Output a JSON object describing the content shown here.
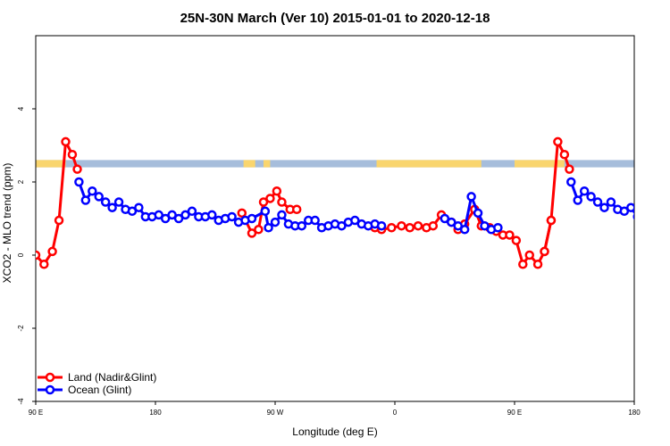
{
  "chart_data": {
    "type": "line",
    "title": "25N-30N March (Ver 10)   2015-01-01 to 2020-12-18",
    "xlabel": "Longitude (deg E)",
    "ylabel": "XCO2 - MLO trend (ppm)",
    "xlim": [
      0,
      360
    ],
    "ylim": [
      -4,
      6
    ],
    "x_ticks": [
      {
        "value": 0,
        "label": "90 E"
      },
      {
        "value": 72,
        "label": "180"
      },
      {
        "value": 144,
        "label": "90 W"
      },
      {
        "value": 216,
        "label": "0"
      },
      {
        "value": 288,
        "label": "90 E"
      },
      {
        "value": 360,
        "label": "180"
      }
    ],
    "y_ticks": [
      {
        "value": -4,
        "label": "-4"
      },
      {
        "value": -2,
        "label": "-2"
      },
      {
        "value": 0,
        "label": "0"
      },
      {
        "value": 2,
        "label": "2"
      },
      {
        "value": 4,
        "label": "4"
      }
    ],
    "grid": false,
    "legend": "bottom-left",
    "landmask": {
      "y_range": [
        2.4,
        2.6
      ],
      "ocean_color": "#a6bddb",
      "land_color": "#f9d56e",
      "land_segments": [
        [
          0,
          18
        ],
        [
          125,
          132
        ],
        [
          137,
          141
        ],
        [
          205,
          268
        ],
        [
          288,
          318
        ]
      ]
    },
    "series": [
      {
        "name": "Land (Nadir&Glint)",
        "color": "#ff0000",
        "segments": [
          {
            "x": [
              0,
              5,
              10,
              14,
              18,
              22,
              25
            ],
            "y": [
              0.0,
              -0.25,
              0.1,
              0.95,
              3.1,
              2.75,
              2.35
            ]
          },
          {
            "x": [
              124,
              130,
              134,
              137,
              141,
              145,
              148,
              153,
              157
            ],
            "y": [
              1.15,
              0.6,
              0.7,
              1.45,
              1.55,
              1.75,
              1.45,
              1.25,
              1.25
            ]
          },
          {
            "x": [
              204,
              208,
              214,
              220,
              225,
              230,
              235,
              239,
              244,
              250,
              254,
              258,
              264,
              268,
              273,
              277,
              281,
              285,
              289,
              293,
              297,
              302,
              306,
              310
            ],
            "y": [
              0.75,
              0.7,
              0.75,
              0.8,
              0.75,
              0.8,
              0.75,
              0.8,
              1.1,
              0.9,
              0.7,
              0.85,
              1.25,
              0.8,
              0.75,
              0.65,
              0.55,
              0.55,
              0.4,
              -0.25,
              0.0,
              -0.25,
              0.1,
              0.95
            ]
          },
          {
            "x": [
              306,
              310,
              314,
              318,
              321
            ],
            "y": [
              0.1,
              0.95,
              3.1,
              2.75,
              2.35
            ]
          }
        ]
      },
      {
        "name": "Ocean (Glint)",
        "color": "#0000ff",
        "segments": [
          {
            "x": [
              26,
              30,
              34,
              38,
              42,
              46,
              50,
              54,
              58,
              62,
              66,
              70,
              74,
              78,
              82,
              86,
              90,
              94,
              98,
              102,
              106,
              110,
              114,
              118,
              122,
              126,
              130,
              138,
              140,
              144,
              148,
              152,
              156,
              160,
              164,
              168,
              172,
              176,
              180,
              184,
              188,
              192,
              196,
              200,
              204,
              208
            ],
            "y": [
              2.0,
              1.5,
              1.75,
              1.6,
              1.45,
              1.3,
              1.45,
              1.25,
              1.2,
              1.3,
              1.05,
              1.05,
              1.1,
              1.0,
              1.1,
              1.0,
              1.1,
              1.2,
              1.05,
              1.05,
              1.1,
              0.95,
              1.0,
              1.05,
              0.9,
              0.95,
              1.0,
              1.2,
              0.75,
              0.9,
              1.1,
              0.85,
              0.8,
              0.8,
              0.95,
              0.95,
              0.75,
              0.8,
              0.85,
              0.8,
              0.9,
              0.95,
              0.85,
              0.8,
              0.85,
              0.8
            ]
          },
          {
            "x": [
              246,
              250,
              254,
              258,
              262,
              266,
              270,
              274,
              278
            ],
            "y": [
              1.0,
              0.9,
              0.8,
              0.7,
              1.6,
              1.15,
              0.8,
              0.7,
              0.75
            ]
          },
          {
            "x": [
              322,
              326,
              330,
              334,
              338,
              342,
              346,
              350,
              354,
              358,
              362
            ],
            "y": [
              2.0,
              1.5,
              1.75,
              1.6,
              1.45,
              1.3,
              1.45,
              1.25,
              1.2,
              1.3,
              1.05
            ]
          }
        ]
      }
    ]
  }
}
